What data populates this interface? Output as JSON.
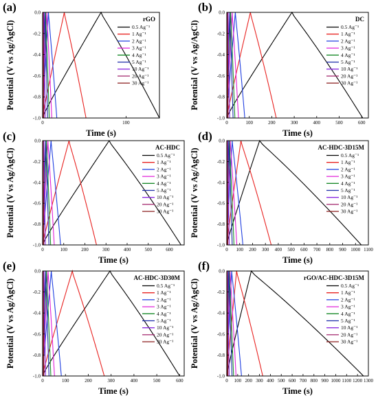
{
  "series_labels": [
    "0.5 Ag⁻¹",
    "1 Ag⁻¹",
    "2 Ag⁻¹",
    "3 Ag⁻¹",
    "4 Ag⁻¹",
    "5 Ag⁻¹",
    "10 Ag⁻¹",
    "20 Ag⁻¹",
    "30 Ag⁻¹"
  ],
  "series_colors": [
    "#000000",
    "#e8211f",
    "#1f3ee0",
    "#e020d8",
    "#1a8a2a",
    "#1a2aa8",
    "#8a2ae0",
    "#a0206a",
    "#8a1a1a"
  ],
  "chart_data": [
    {
      "type": "line",
      "panel_letter": "(a)",
      "title": "rGO",
      "xlabel": "Time (s)",
      "ylabel": "Potential (V vs Ag/AgCl)",
      "xlim": [
        0,
        140
      ],
      "ylim": [
        -1.0,
        0.0
      ],
      "xticks": [
        0,
        100
      ],
      "yticks": [
        0.0,
        -0.2,
        -0.4,
        -0.6,
        -0.8,
        -1.0
      ],
      "x_tick_labels": [
        "0",
        "100"
      ],
      "y_tick_labels": [
        "0.0",
        "-0.2",
        "-0.4",
        "-0.6",
        "-0.8",
        "-1.0"
      ],
      "series": [
        {
          "name": "0.5 Ag⁻¹",
          "charge_end": 70,
          "discharge_end": 140
        },
        {
          "name": "1 Ag⁻¹",
          "charge_end": 26,
          "discharge_end": 52
        },
        {
          "name": "2 Ag⁻¹",
          "charge_end": 7,
          "discharge_end": 17
        },
        {
          "name": "3 Ag⁻¹",
          "charge_end": 5,
          "discharge_end": 11
        },
        {
          "name": "4 Ag⁻¹",
          "charge_end": 3.5,
          "discharge_end": 8
        },
        {
          "name": "5 Ag⁻¹",
          "charge_end": 2.8,
          "discharge_end": 6
        },
        {
          "name": "10 Ag⁻¹",
          "charge_end": 1.5,
          "discharge_end": 3.2
        },
        {
          "name": "20 Ag⁻¹",
          "charge_end": 0.8,
          "discharge_end": 1.6
        },
        {
          "name": "30 Ag⁻¹",
          "charge_end": 0.5,
          "discharge_end": 1.0
        }
      ]
    },
    {
      "type": "line",
      "panel_letter": "(b)",
      "title": "DC",
      "xlabel": "Time (s)",
      "ylabel": "Potential (V vs Ag/AgCl)",
      "xlim": [
        0,
        630
      ],
      "ylim": [
        -1.0,
        0.0
      ],
      "xticks": [
        0,
        100,
        200,
        300,
        400,
        500,
        600
      ],
      "yticks": [
        0.0,
        -0.2,
        -0.4,
        -0.6,
        -0.8,
        -1.0
      ],
      "x_tick_labels": [
        "0",
        "100",
        "200",
        "300",
        "400",
        "500",
        "600"
      ],
      "y_tick_labels": [
        "0.0",
        "-0.2",
        "-0.4",
        "-0.6",
        "-0.8",
        "-1.0"
      ],
      "series": [
        {
          "name": "0.5 Ag⁻¹",
          "charge_end": 290,
          "discharge_end": 605
        },
        {
          "name": "1 Ag⁻¹",
          "charge_end": 105,
          "discharge_end": 220
        },
        {
          "name": "2 Ag⁻¹",
          "charge_end": 38,
          "discharge_end": 80
        },
        {
          "name": "3 Ag⁻¹",
          "charge_end": 24,
          "discharge_end": 52
        },
        {
          "name": "4 Ag⁻¹",
          "charge_end": 17,
          "discharge_end": 36
        },
        {
          "name": "5 Ag⁻¹",
          "charge_end": 13,
          "discharge_end": 28
        },
        {
          "name": "10 Ag⁻¹",
          "charge_end": 6,
          "discharge_end": 13
        },
        {
          "name": "20 Ag⁻¹",
          "charge_end": 3,
          "discharge_end": 6
        },
        {
          "name": "30 Ag⁻¹",
          "charge_end": 2,
          "discharge_end": 4
        }
      ]
    },
    {
      "type": "line",
      "panel_letter": "(c)",
      "title": "AC-HDC",
      "xlabel": "Time (s)",
      "ylabel": "Potential (V vs Ag/AgCl)",
      "xlim": [
        0,
        670
      ],
      "ylim": [
        -1.0,
        0.0
      ],
      "xticks": [
        0,
        100,
        200,
        300,
        400,
        500,
        600
      ],
      "yticks": [
        0.0,
        -0.2,
        -0.4,
        -0.6,
        -0.8,
        -1.0
      ],
      "x_tick_labels": [
        "0",
        "100",
        "200",
        "300",
        "400",
        "500",
        "600"
      ],
      "y_tick_labels": [
        "0.0",
        "-0.2",
        "-0.4",
        "-0.6",
        "-0.8",
        "-1.0"
      ],
      "series": [
        {
          "name": "0.5 Ag⁻¹",
          "charge_end": 315,
          "discharge_end": 655
        },
        {
          "name": "1 Ag⁻¹",
          "charge_end": 125,
          "discharge_end": 255
        },
        {
          "name": "2 Ag⁻¹",
          "charge_end": 40,
          "discharge_end": 85
        },
        {
          "name": "3 Ag⁻¹",
          "charge_end": 25,
          "discharge_end": 55
        },
        {
          "name": "4 Ag⁻¹",
          "charge_end": 18,
          "discharge_end": 38
        },
        {
          "name": "5 Ag⁻¹",
          "charge_end": 14,
          "discharge_end": 30
        },
        {
          "name": "10 Ag⁻¹",
          "charge_end": 6,
          "discharge_end": 13
        },
        {
          "name": "20 Ag⁻¹",
          "charge_end": 3,
          "discharge_end": 6
        },
        {
          "name": "30 Ag⁻¹",
          "charge_end": 2,
          "discharge_end": 4
        }
      ]
    },
    {
      "type": "line",
      "panel_letter": "(d)",
      "title": "AC-HDC-3D15M",
      "xlabel": "Time (s)",
      "ylabel": "Potential (V vs Ag/AgCl)",
      "xlim": [
        0,
        1100
      ],
      "ylim": [
        -1.0,
        0.0
      ],
      "xticks": [
        0,
        100,
        200,
        300,
        400,
        500,
        600,
        700,
        800,
        900,
        1000,
        1100
      ],
      "yticks": [
        0.0,
        -0.2,
        -0.4,
        -0.6,
        -0.8,
        -1.0
      ],
      "x_tick_labels": [
        "0",
        "100",
        "200",
        "300",
        "400",
        "500",
        "600",
        "700",
        "800",
        "900",
        "1000",
        "1100"
      ],
      "y_tick_labels": [
        "0.0",
        "-0.2",
        "-0.4",
        "-0.6",
        "-0.8",
        "-1.0"
      ],
      "series": [
        {
          "name": "0.5 Ag⁻¹",
          "charge_end": 255,
          "discharge_end": 1045
        },
        {
          "name": "1 Ag⁻¹",
          "charge_end": 110,
          "discharge_end": 345
        },
        {
          "name": "2 Ag⁻¹",
          "charge_end": 42,
          "discharge_end": 125
        },
        {
          "name": "3 Ag⁻¹",
          "charge_end": 27,
          "discharge_end": 78
        },
        {
          "name": "4 Ag⁻¹",
          "charge_end": 20,
          "discharge_end": 56
        },
        {
          "name": "5 Ag⁻¹",
          "charge_end": 15,
          "discharge_end": 42
        },
        {
          "name": "10 Ag⁻¹",
          "charge_end": 7,
          "discharge_end": 19
        },
        {
          "name": "20 Ag⁻¹",
          "charge_end": 3.5,
          "discharge_end": 9
        },
        {
          "name": "30 Ag⁻¹",
          "charge_end": 2,
          "discharge_end": 6
        }
      ]
    },
    {
      "type": "line",
      "panel_letter": "(e)",
      "title": "AC-HDC-3D30M",
      "xlabel": "Time (s)",
      "ylabel": "Potential (V vs Ag/AgCl)",
      "xlim": [
        0,
        620
      ],
      "ylim": [
        -1.0,
        0.0
      ],
      "xticks": [
        0,
        100,
        200,
        300,
        400,
        500,
        600
      ],
      "yticks": [
        0.0,
        -0.2,
        -0.4,
        -0.6,
        -0.8,
        -1.0
      ],
      "x_tick_labels": [
        "0",
        "100",
        "200",
        "300",
        "400",
        "500",
        "600"
      ],
      "y_tick_labels": [
        "0.0",
        "-0.2",
        "-0.4",
        "-0.6",
        "-0.8",
        "-1.0"
      ],
      "series": [
        {
          "name": "0.5 Ag⁻¹",
          "charge_end": 295,
          "discharge_end": 600
        },
        {
          "name": "1 Ag⁻¹",
          "charge_end": 130,
          "discharge_end": 270
        },
        {
          "name": "2 Ag⁻¹",
          "charge_end": 38,
          "discharge_end": 82
        },
        {
          "name": "3 Ag⁻¹",
          "charge_end": 24,
          "discharge_end": 52
        },
        {
          "name": "4 Ag⁻¹",
          "charge_end": 17,
          "discharge_end": 36
        },
        {
          "name": "5 Ag⁻¹",
          "charge_end": 13,
          "discharge_end": 28
        },
        {
          "name": "10 Ag⁻¹",
          "charge_end": 6,
          "discharge_end": 13
        },
        {
          "name": "20 Ag⁻¹",
          "charge_end": 3,
          "discharge_end": 6
        },
        {
          "name": "30 Ag⁻¹",
          "charge_end": 2,
          "discharge_end": 4
        }
      ]
    },
    {
      "type": "line",
      "panel_letter": "(f)",
      "title": "rGO/AC-HDC-3D15M",
      "xlabel": "Time (s)",
      "ylabel": "Potential (V vs Ag/AgCl)",
      "xlim": [
        0,
        1300
      ],
      "ylim": [
        -1.0,
        0.0
      ],
      "xticks": [
        0,
        100,
        200,
        300,
        400,
        500,
        600,
        700,
        800,
        900,
        1000,
        1100,
        1200,
        1300
      ],
      "yticks": [
        0.0,
        -0.2,
        -0.4,
        -0.6,
        -0.8,
        -1.0
      ],
      "x_tick_labels": [
        "0",
        "100",
        "200",
        "300",
        "400",
        "500",
        "600",
        "700",
        "800",
        "900",
        "1000",
        "1100",
        "1200",
        "1300"
      ],
      "y_tick_labels": [
        "0.0",
        "-0.2",
        "-0.4",
        "-0.6",
        "-0.8",
        "-1.0"
      ],
      "series": [
        {
          "name": "0.5 Ag⁻¹",
          "charge_end": 225,
          "discharge_end": 1255
        },
        {
          "name": "1 Ag⁻¹",
          "charge_end": 90,
          "discharge_end": 330
        },
        {
          "name": "2 Ag⁻¹",
          "charge_end": 45,
          "discharge_end": 135
        },
        {
          "name": "3 Ag⁻¹",
          "charge_end": 30,
          "discharge_end": 85
        },
        {
          "name": "4 Ag⁻¹",
          "charge_end": 22,
          "discharge_end": 62
        },
        {
          "name": "5 Ag⁻¹",
          "charge_end": 17,
          "discharge_end": 48
        },
        {
          "name": "10 Ag⁻¹",
          "charge_end": 8,
          "discharge_end": 22
        },
        {
          "name": "20 Ag⁻¹",
          "charge_end": 4,
          "discharge_end": 11
        },
        {
          "name": "30 Ag⁻¹",
          "charge_end": 2.5,
          "discharge_end": 7
        }
      ]
    }
  ]
}
